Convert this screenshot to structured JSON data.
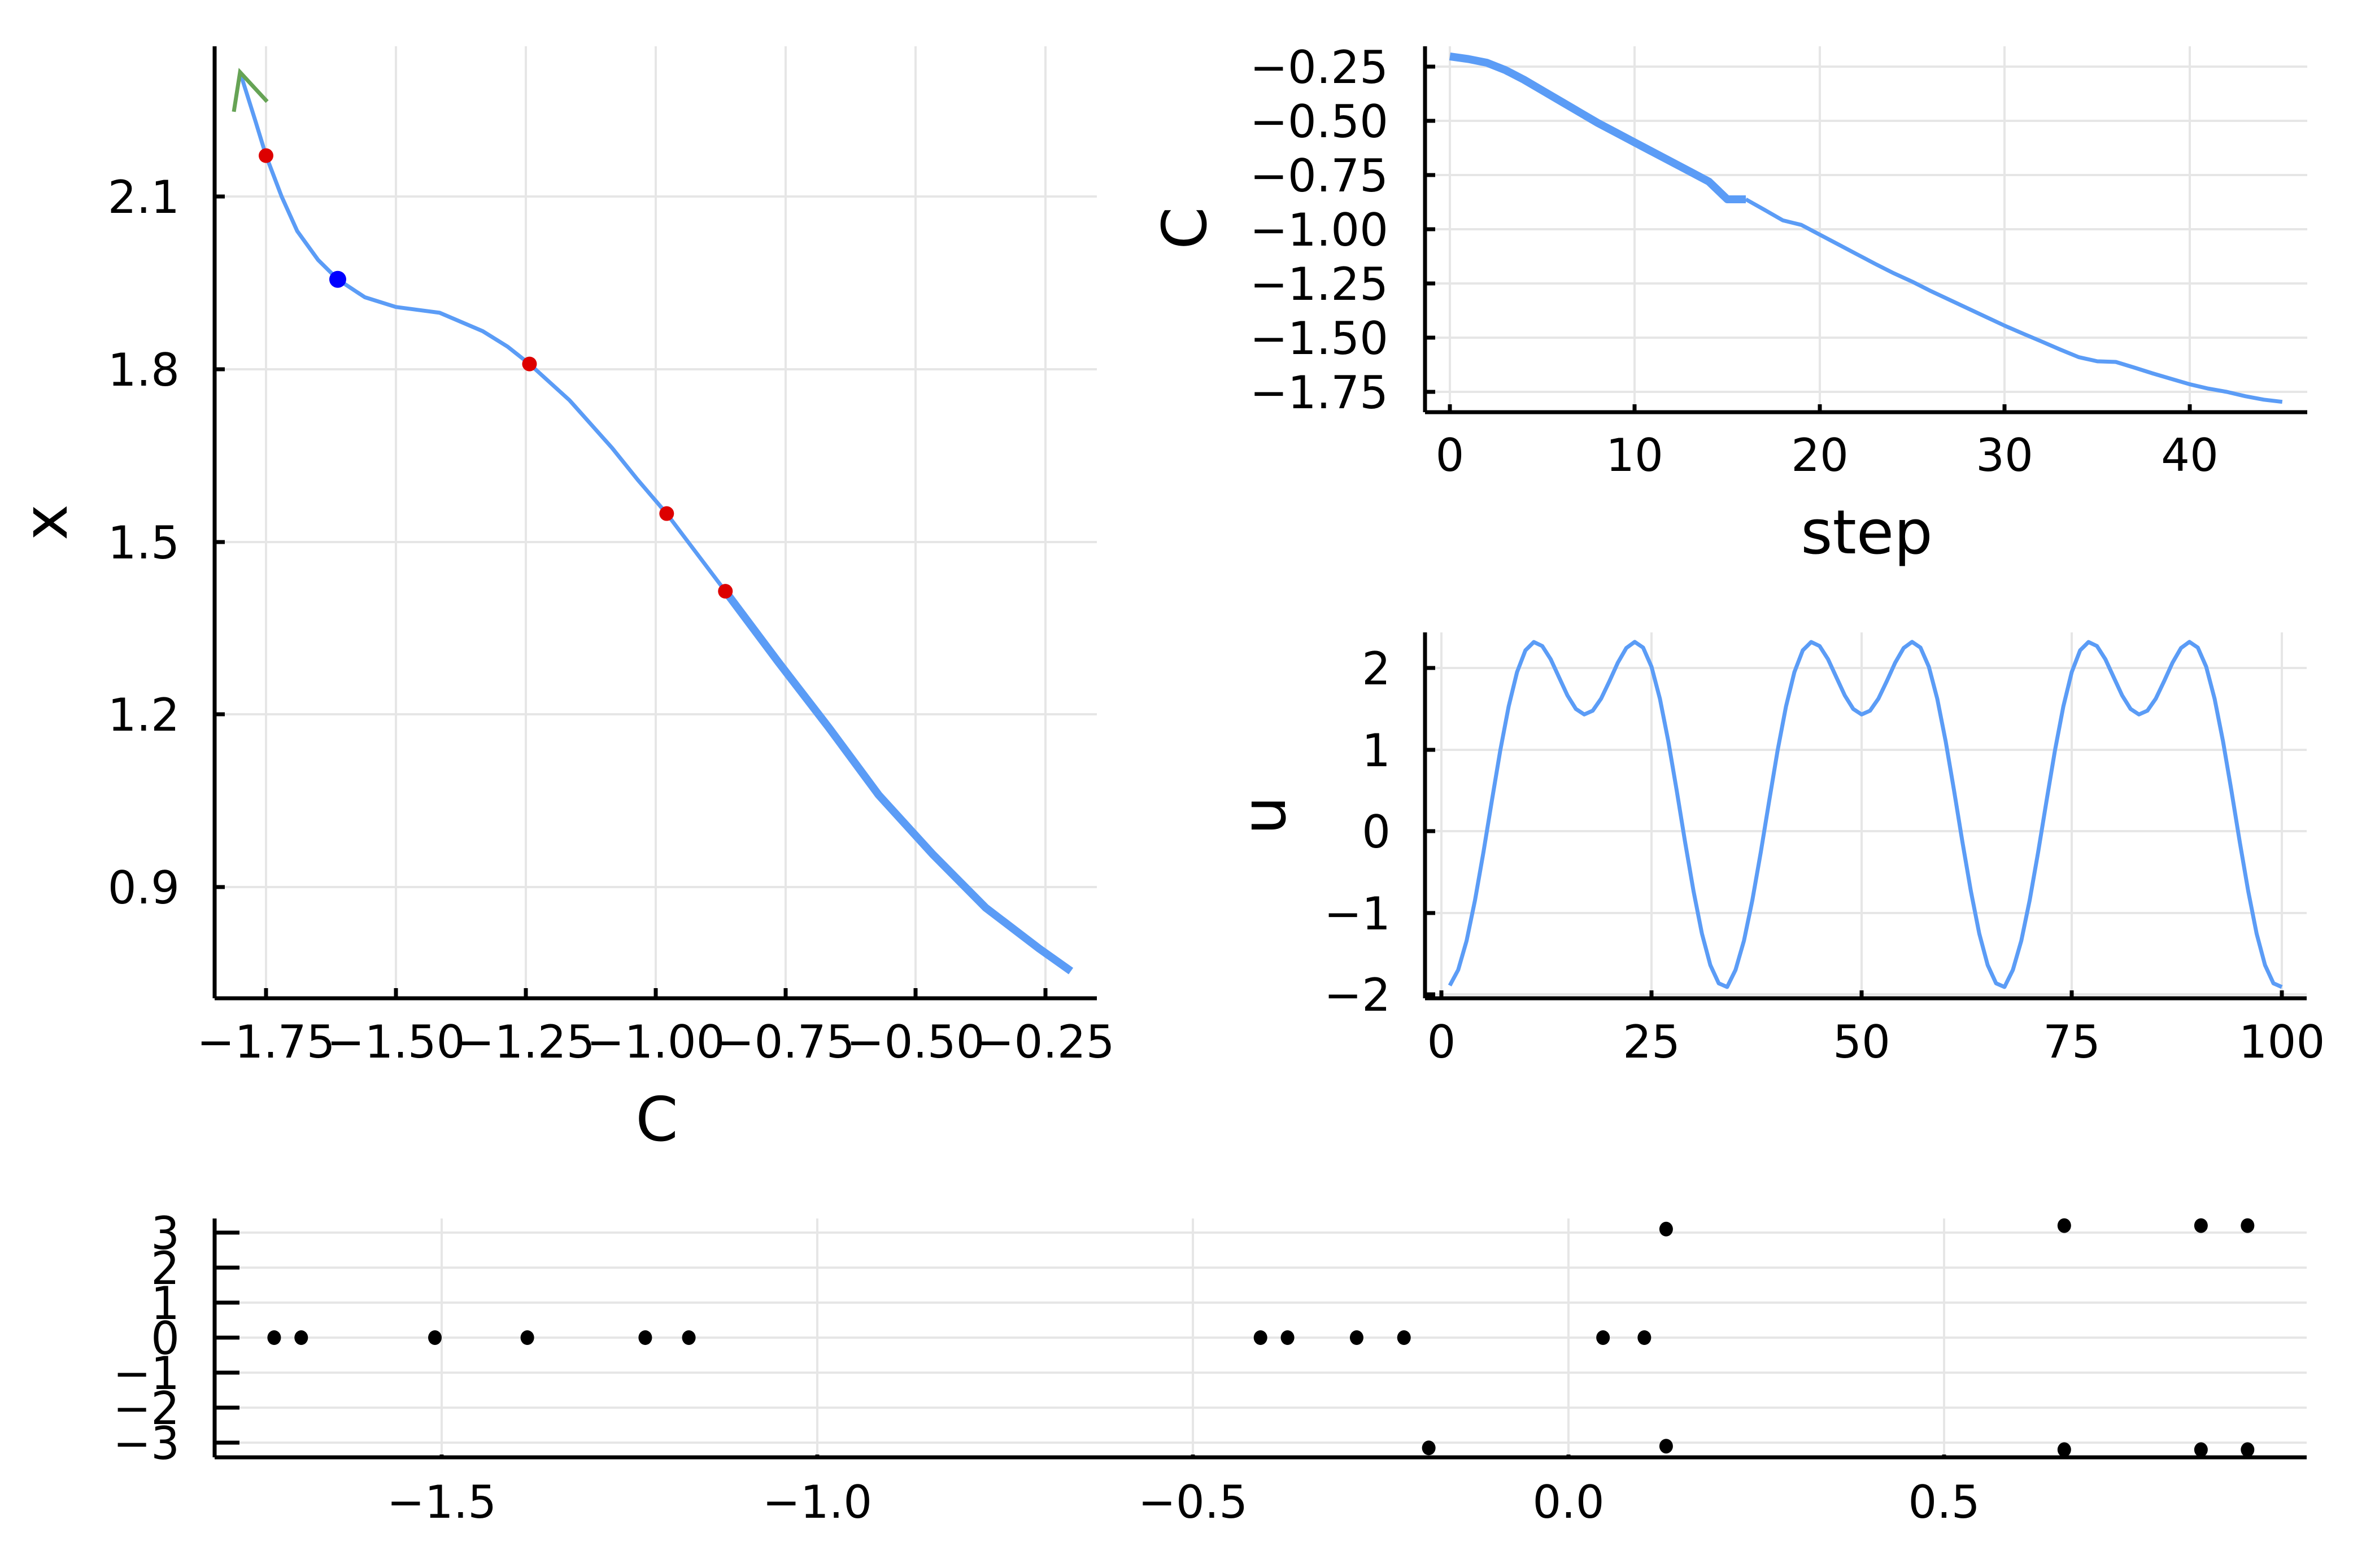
{
  "figure": {
    "colors": {
      "line": "#5b9cf6",
      "marker_red": "#dd0000",
      "marker_blue": "#0000ff",
      "arrow": "#66a355",
      "dots": "#000000",
      "grid": "#e6e6e6"
    }
  },
  "panels": {
    "left": {
      "xlabel": "C",
      "ylabel": "x",
      "xticks": [
        "−1.75",
        "−1.50",
        "−1.25",
        "−1.00",
        "−0.75",
        "−0.50",
        "−0.25"
      ],
      "yticks": [
        "2.1",
        "1.8",
        "1.5",
        "1.2",
        "0.9"
      ]
    },
    "top_right": {
      "xlabel": "step",
      "ylabel": "C",
      "xticks": [
        "0",
        "10",
        "20",
        "30",
        "40"
      ],
      "yticks": [
        "−0.25",
        "−0.50",
        "−0.75",
        "−1.00",
        "−1.25",
        "−1.50",
        "−1.75"
      ]
    },
    "mid_right": {
      "xlabel": "",
      "ylabel": "u",
      "xticks": [
        "0",
        "25",
        "50",
        "75",
        "100"
      ],
      "yticks": [
        "2",
        "1",
        "0",
        "−1",
        "−2"
      ]
    },
    "bottom": {
      "xlabel": "",
      "ylabel": "",
      "xticks": [
        "−1.5",
        "−1.0",
        "−0.5",
        "0.0",
        "0.5"
      ],
      "yticks": [
        "3",
        "2",
        "1",
        "0",
        "−1",
        "−2",
        "−3"
      ]
    }
  },
  "chart_data": [
    {
      "id": "left",
      "type": "line",
      "title": "",
      "xlabel": "C",
      "ylabel": "x",
      "xlim": [
        -1.85,
        -0.15
      ],
      "ylim": [
        0.72,
        2.42
      ],
      "xticks": [
        -1.75,
        -1.5,
        -1.25,
        -1.0,
        -0.75,
        -0.5,
        -0.25
      ],
      "yticks": [
        2.1,
        1.8,
        1.5,
        1.2,
        0.9
      ],
      "grid": true,
      "legend": "none",
      "series": [
        {
          "name": "branch",
          "color": "#5b9cf6",
          "x": [
            -1.8,
            -1.77,
            -1.75,
            -1.72,
            -1.69,
            -1.65,
            -1.612,
            -1.56,
            -1.5,
            -1.416,
            -1.333,
            -1.285,
            -1.243,
            -1.166,
            -1.084,
            -1.035,
            -0.979,
            -0.866
          ],
          "y": [
            2.316,
            2.23,
            2.171,
            2.1,
            2.04,
            1.99,
            1.956,
            1.925,
            1.908,
            1.898,
            1.866,
            1.839,
            1.809,
            1.746,
            1.663,
            1.608,
            1.549,
            1.414
          ]
        },
        {
          "name": "branch-thick",
          "color": "#5b9cf6",
          "x": [
            -0.866,
            -0.765,
            -0.666,
            -0.571,
            -0.467,
            -0.365,
            -0.262,
            -0.201
          ],
          "y": [
            1.414,
            1.292,
            1.176,
            1.06,
            0.957,
            0.864,
            0.793,
            0.754
          ]
        }
      ],
      "markers": [
        {
          "name": "special-point",
          "color": "#dd0000",
          "x": -1.75,
          "y": 2.171
        },
        {
          "name": "current-point",
          "color": "#0000ff",
          "x": -1.612,
          "y": 1.956
        },
        {
          "name": "special-point",
          "color": "#dd0000",
          "x": -1.243,
          "y": 1.809
        },
        {
          "name": "special-point",
          "color": "#dd0000",
          "x": -0.979,
          "y": 1.549
        },
        {
          "name": "special-point",
          "color": "#dd0000",
          "x": -0.866,
          "y": 1.414
        }
      ],
      "annotations": [
        {
          "type": "arrow",
          "color": "#66a355",
          "tip": [
            -1.8,
            2.316
          ],
          "direction": "up-left"
        }
      ]
    },
    {
      "id": "top_right",
      "type": "line",
      "title": "",
      "xlabel": "step",
      "ylabel": "C",
      "xlim": [
        -1.3,
        46.5
      ],
      "ylim": [
        -1.87,
        -0.16
      ],
      "xticks": [
        0,
        10,
        20,
        30,
        40
      ],
      "yticks": [
        -0.25,
        -0.5,
        -0.75,
        -1.0,
        -1.25,
        -1.5,
        -1.75
      ],
      "grid": true,
      "legend": "none",
      "series": [
        {
          "name": "C-history-thick",
          "color": "#5b9cf6",
          "x": [
            0,
            1,
            2,
            3,
            4,
            5,
            6,
            7,
            8,
            9,
            10,
            11,
            12,
            13,
            14,
            15,
            16
          ],
          "y": [
            -0.203,
            -0.215,
            -0.232,
            -0.266,
            -0.31,
            -0.36,
            -0.41,
            -0.46,
            -0.51,
            -0.555,
            -0.6,
            -0.645,
            -0.69,
            -0.735,
            -0.78,
            -0.862,
            -0.862
          ]
        },
        {
          "name": "C-history",
          "color": "#5b9cf6",
          "x": [
            16,
            17,
            18,
            19,
            20,
            21,
            22,
            23,
            24,
            25,
            26,
            27,
            28,
            29,
            30,
            31,
            32,
            33,
            34,
            35,
            36,
            37,
            38,
            39,
            40,
            41,
            42,
            43,
            44,
            45
          ],
          "y": [
            -0.862,
            -0.91,
            -0.959,
            -0.98,
            -1.025,
            -1.07,
            -1.115,
            -1.16,
            -1.203,
            -1.242,
            -1.285,
            -1.325,
            -1.365,
            -1.405,
            -1.445,
            -1.482,
            -1.518,
            -1.555,
            -1.59,
            -1.609,
            -1.612,
            -1.638,
            -1.665,
            -1.69,
            -1.715,
            -1.735,
            -1.75,
            -1.77,
            -1.786,
            -1.796
          ]
        }
      ]
    },
    {
      "id": "mid_right",
      "type": "line",
      "title": "",
      "xlabel": "",
      "ylabel": "u",
      "xlim": [
        -2,
        102
      ],
      "ylim": [
        -2.05,
        2.45
      ],
      "xticks": [
        0,
        25,
        50,
        75,
        100
      ],
      "yticks": [
        2,
        1,
        0,
        -1,
        -2
      ],
      "grid": true,
      "legend": "none",
      "series": [
        {
          "name": "u",
          "color": "#5b9cf6",
          "x_start": 1,
          "x_step": 1,
          "values": [
            -1.892,
            -1.7,
            -1.343,
            -0.846,
            -0.26,
            0.37,
            0.986,
            1.527,
            1.949,
            2.216,
            2.318,
            2.269,
            2.108,
            1.885,
            1.663,
            1.498,
            1.43,
            1.476,
            1.624,
            1.839,
            2.066,
            2.244,
            2.32,
            2.25,
            2.015,
            1.623,
            1.102,
            0.497,
            -0.136,
            -0.735,
            -1.256,
            -1.642,
            -1.865,
            -1.91,
            -1.7,
            -1.343,
            -0.846,
            -0.26,
            0.37,
            0.986,
            1.527,
            1.949,
            2.216,
            2.318,
            2.269,
            2.108,
            1.885,
            1.663,
            1.498,
            1.43,
            1.476,
            1.624,
            1.839,
            2.066,
            2.244,
            2.32,
            2.25,
            2.015,
            1.623,
            1.102,
            0.497,
            -0.136,
            -0.735,
            -1.256,
            -1.642,
            -1.865,
            -1.91,
            -1.7,
            -1.343,
            -0.846,
            -0.26,
            0.37,
            0.986,
            1.527,
            1.949,
            2.216,
            2.318,
            2.269,
            2.108,
            1.885,
            1.663,
            1.498,
            1.43,
            1.476,
            1.624,
            1.839,
            2.066,
            2.244,
            2.32,
            2.25,
            2.015,
            1.623,
            1.102,
            0.497,
            -0.136,
            -0.735,
            -1.256,
            -1.642,
            -1.865,
            -1.91
          ]
        }
      ]
    },
    {
      "id": "bottom",
      "type": "scatter",
      "title": "",
      "xlabel": "",
      "ylabel": "",
      "xlim": [
        -1.8,
        0.98
      ],
      "ylim": [
        -3.4,
        3.6
      ],
      "xticks": [
        -1.5,
        -1.0,
        -0.5,
        0.0,
        0.5
      ],
      "yticks": [
        3,
        2,
        1,
        0,
        -1,
        -2,
        -3
      ],
      "grid": true,
      "legend": "none",
      "series": [
        {
          "name": "eigenvalues",
          "color": "#000000",
          "x": [
            -1.723,
            -1.687,
            -1.509,
            -1.386,
            -1.229,
            -1.171,
            -0.41,
            -0.374,
            -0.282,
            -0.219,
            0.046,
            0.101,
            0.13,
            0.13,
            -0.186,
            0.66,
            0.66,
            0.842,
            0.842,
            0.904,
            0.904
          ],
          "y": [
            0,
            0,
            0,
            0,
            0,
            0,
            0,
            0,
            0,
            0,
            0,
            0,
            3.1,
            -3.1,
            -3.15,
            3.2,
            -3.2,
            3.2,
            -3.2,
            3.2,
            -3.2
          ]
        }
      ]
    }
  ]
}
